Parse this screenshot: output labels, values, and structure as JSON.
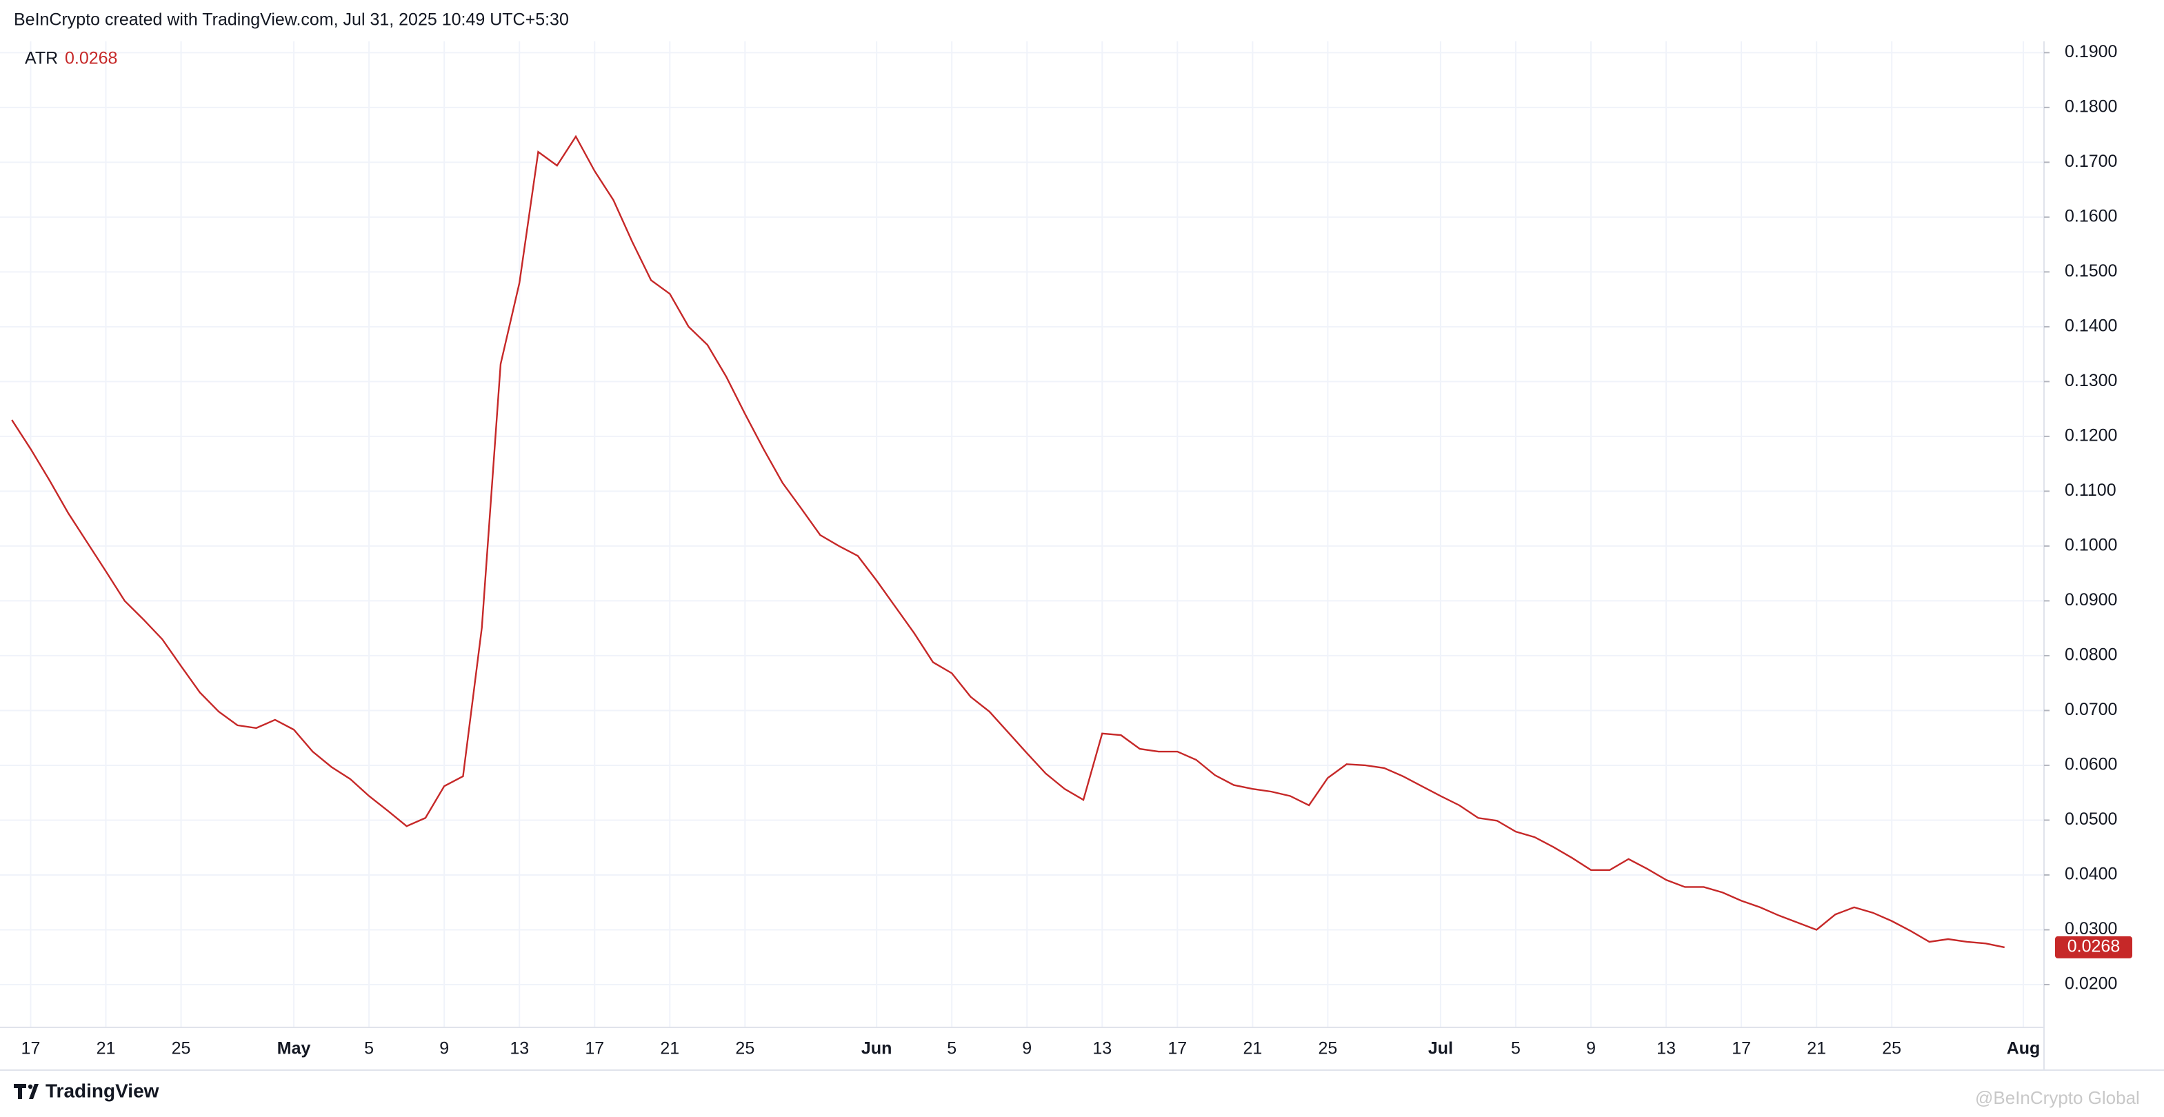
{
  "chart_data": {
    "type": "line",
    "title": "BeInCrypto created with TradingView.com, Jul 31, 2025 10:49 UTC+5:30",
    "categories": [
      null,
      "17",
      null,
      null,
      null,
      "21",
      null,
      null,
      null,
      "25",
      null,
      null,
      null,
      null,
      null,
      "May",
      null,
      null,
      null,
      "5",
      null,
      null,
      null,
      "9",
      null,
      null,
      null,
      "13",
      null,
      null,
      null,
      "17",
      null,
      null,
      null,
      "21",
      null,
      null,
      null,
      "25",
      null,
      null,
      null,
      null,
      null,
      null,
      "Jun",
      null,
      null,
      null,
      "5",
      null,
      null,
      null,
      "9",
      null,
      null,
      null,
      "13",
      null,
      null,
      null,
      "17",
      null,
      null,
      null,
      "21",
      null,
      null,
      null,
      "25",
      null,
      null,
      null,
      null,
      null,
      "Jul",
      null,
      null,
      null,
      "5",
      null,
      null,
      null,
      "9",
      null,
      null,
      null,
      "13",
      null,
      null,
      null,
      "17",
      null,
      null,
      null,
      "21",
      null,
      null,
      null,
      "25",
      null,
      null,
      null,
      null,
      null,
      null,
      "Aug"
    ],
    "series": [
      {
        "name": "ATR",
        "color": "#c62828",
        "values": [
          0.123,
          0.1177,
          0.112,
          0.106,
          0.1007,
          0.0954,
          0.09,
          0.0866,
          0.083,
          0.0781,
          0.0733,
          0.0698,
          0.0673,
          0.0668,
          0.0683,
          0.0665,
          0.0625,
          0.0597,
          0.0575,
          0.0544,
          0.0517,
          0.0489,
          0.0504,
          0.0562,
          0.058,
          0.0851,
          0.1332,
          0.148,
          0.1719,
          0.1694,
          0.1747,
          0.1684,
          0.1631,
          0.1555,
          0.1485,
          0.146,
          0.14,
          0.1367,
          0.1309,
          0.1241,
          0.1176,
          0.1115,
          0.1068,
          0.102,
          0.1,
          0.0982,
          0.0937,
          0.0889,
          0.0841,
          0.0788,
          0.0768,
          0.0725,
          0.0698,
          0.066,
          0.0622,
          0.0585,
          0.0557,
          0.0537,
          0.0658,
          0.0655,
          0.063,
          0.0625,
          0.0625,
          0.061,
          0.0582,
          0.0564,
          0.0557,
          0.0552,
          0.0544,
          0.0527,
          0.0577,
          0.0602,
          0.06,
          0.0595,
          0.058,
          0.0562,
          0.0544,
          0.0527,
          0.0504,
          0.0499,
          0.0479,
          0.0469,
          0.0451,
          0.0431,
          0.0409,
          0.0409,
          0.0429,
          0.0411,
          0.0391,
          0.0378,
          0.0378,
          0.0368,
          0.0353,
          0.0341,
          0.0326,
          0.0313,
          0.03,
          0.0328,
          0.0341,
          0.0331,
          0.0316,
          0.0298,
          0.0278,
          0.0283,
          0.0278,
          0.0275,
          0.0268,
          null
        ]
      }
    ],
    "ylim": [
      0.0122,
      0.1996
    ],
    "yticks": [
      {
        "value": 0.02,
        "label": "0.0200"
      },
      {
        "value": 0.03,
        "label": "0.0300"
      },
      {
        "value": 0.04,
        "label": "0.0400"
      },
      {
        "value": 0.05,
        "label": "0.0500"
      },
      {
        "value": 0.06,
        "label": "0.0600"
      },
      {
        "value": 0.07,
        "label": "0.0700"
      },
      {
        "value": 0.08,
        "label": "0.0800"
      },
      {
        "value": 0.09,
        "label": "0.0900"
      },
      {
        "value": 0.1,
        "label": "0.1000"
      },
      {
        "value": 0.11,
        "label": "0.1100"
      },
      {
        "value": 0.12,
        "label": "0.1200"
      },
      {
        "value": 0.13,
        "label": "0.1300"
      },
      {
        "value": 0.14,
        "label": "0.1400"
      },
      {
        "value": 0.15,
        "label": "0.1500"
      },
      {
        "value": 0.16,
        "label": "0.1600"
      },
      {
        "value": 0.17,
        "label": "0.1700"
      },
      {
        "value": 0.18,
        "label": "0.1800"
      },
      {
        "value": 0.19,
        "label": "0.1900"
      }
    ],
    "grid": true
  },
  "footer": {
    "brand": "TradingView",
    "watermark": "@BeInCrypto Global"
  }
}
